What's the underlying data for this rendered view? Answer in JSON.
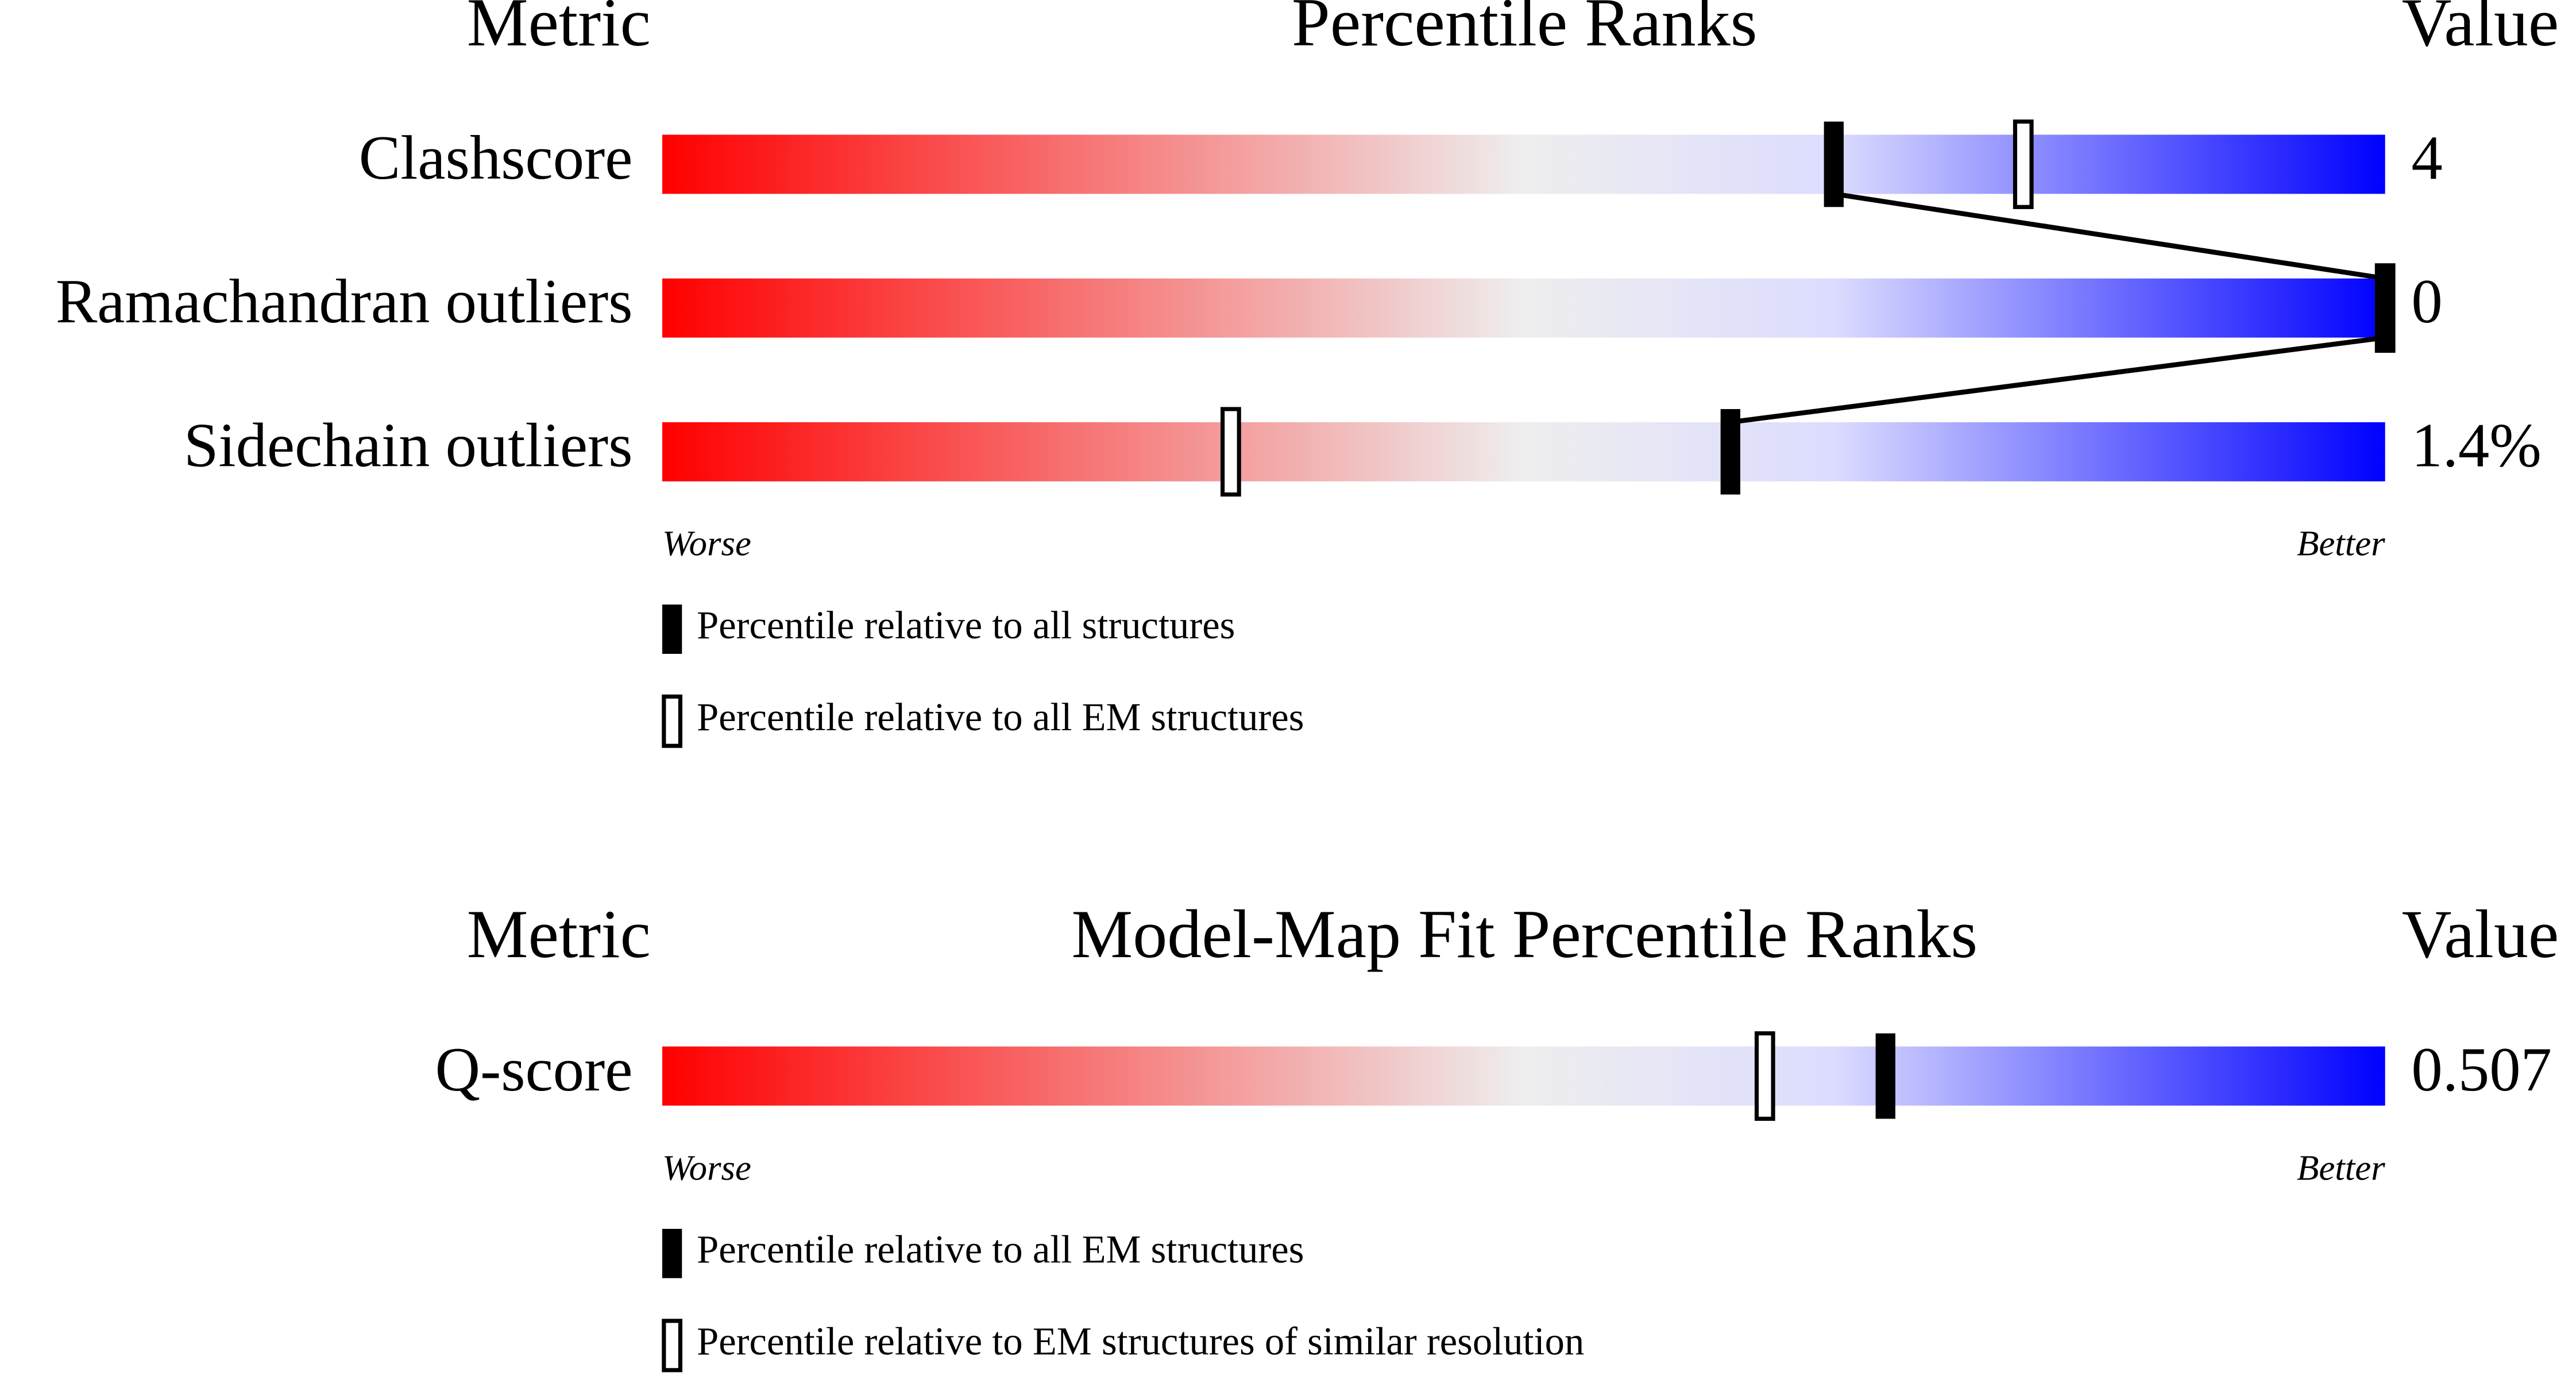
{
  "chart_data": [
    {
      "type": "percentile-slider",
      "title": "Percentile Ranks",
      "metric_header": "Metric",
      "value_header": "Value",
      "categories": [
        "Clashscore",
        "Ramachandran outliers",
        "Sidechain outliers"
      ],
      "metric_values": [
        "4",
        "0",
        "1.4%"
      ],
      "xlim": [
        0,
        100
      ],
      "low_label": "Worse",
      "high_label": "Better",
      "series": [
        {
          "name": "Percentile relative to all EM structures",
          "style": "hollow",
          "color": "#000000",
          "values": [
            79,
            100,
            33
          ]
        },
        {
          "name": "Percentile relative to all structures",
          "style": "filled",
          "color": "#000000",
          "connected": true,
          "values": [
            68,
            100,
            62
          ]
        }
      ]
    },
    {
      "type": "percentile-slider",
      "title": "Model-Map Fit Percentile Ranks",
      "metric_header": "Metric",
      "value_header": "Value",
      "categories": [
        "Q-score"
      ],
      "metric_values": [
        "0.507"
      ],
      "xlim": [
        0,
        100
      ],
      "low_label": "Worse",
      "high_label": "Better",
      "series": [
        {
          "name": "Percentile relative to EM structures of similar resolution",
          "style": "hollow",
          "color": "#000000",
          "values": [
            64
          ]
        },
        {
          "name": "Percentile relative to all EM structures",
          "style": "filled",
          "color": "#000000",
          "values": [
            71
          ]
        }
      ]
    }
  ]
}
